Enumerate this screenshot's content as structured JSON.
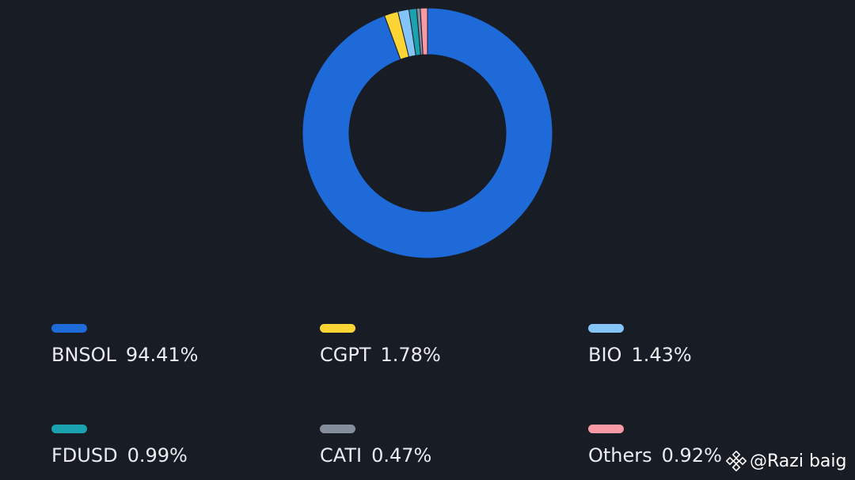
{
  "chart_data": {
    "type": "pie",
    "title": "",
    "labels": [
      "BNSOL",
      "CGPT",
      "BIO",
      "FDUSD",
      "CATI",
      "Others"
    ],
    "values": [
      94.41,
      1.78,
      1.43,
      0.99,
      0.47,
      0.92
    ],
    "value_labels": [
      "94.41%",
      "1.78%",
      "1.43%",
      "0.99%",
      "0.47%",
      "0.92%"
    ],
    "colors": [
      "#1e6ad8",
      "#fcd535",
      "#85c4f8",
      "#1aa2b0",
      "#848e9c",
      "#f79aa5"
    ],
    "hole": "donut"
  },
  "watermark": {
    "text": "@Razi baig",
    "icon": "binance-logo-icon"
  }
}
